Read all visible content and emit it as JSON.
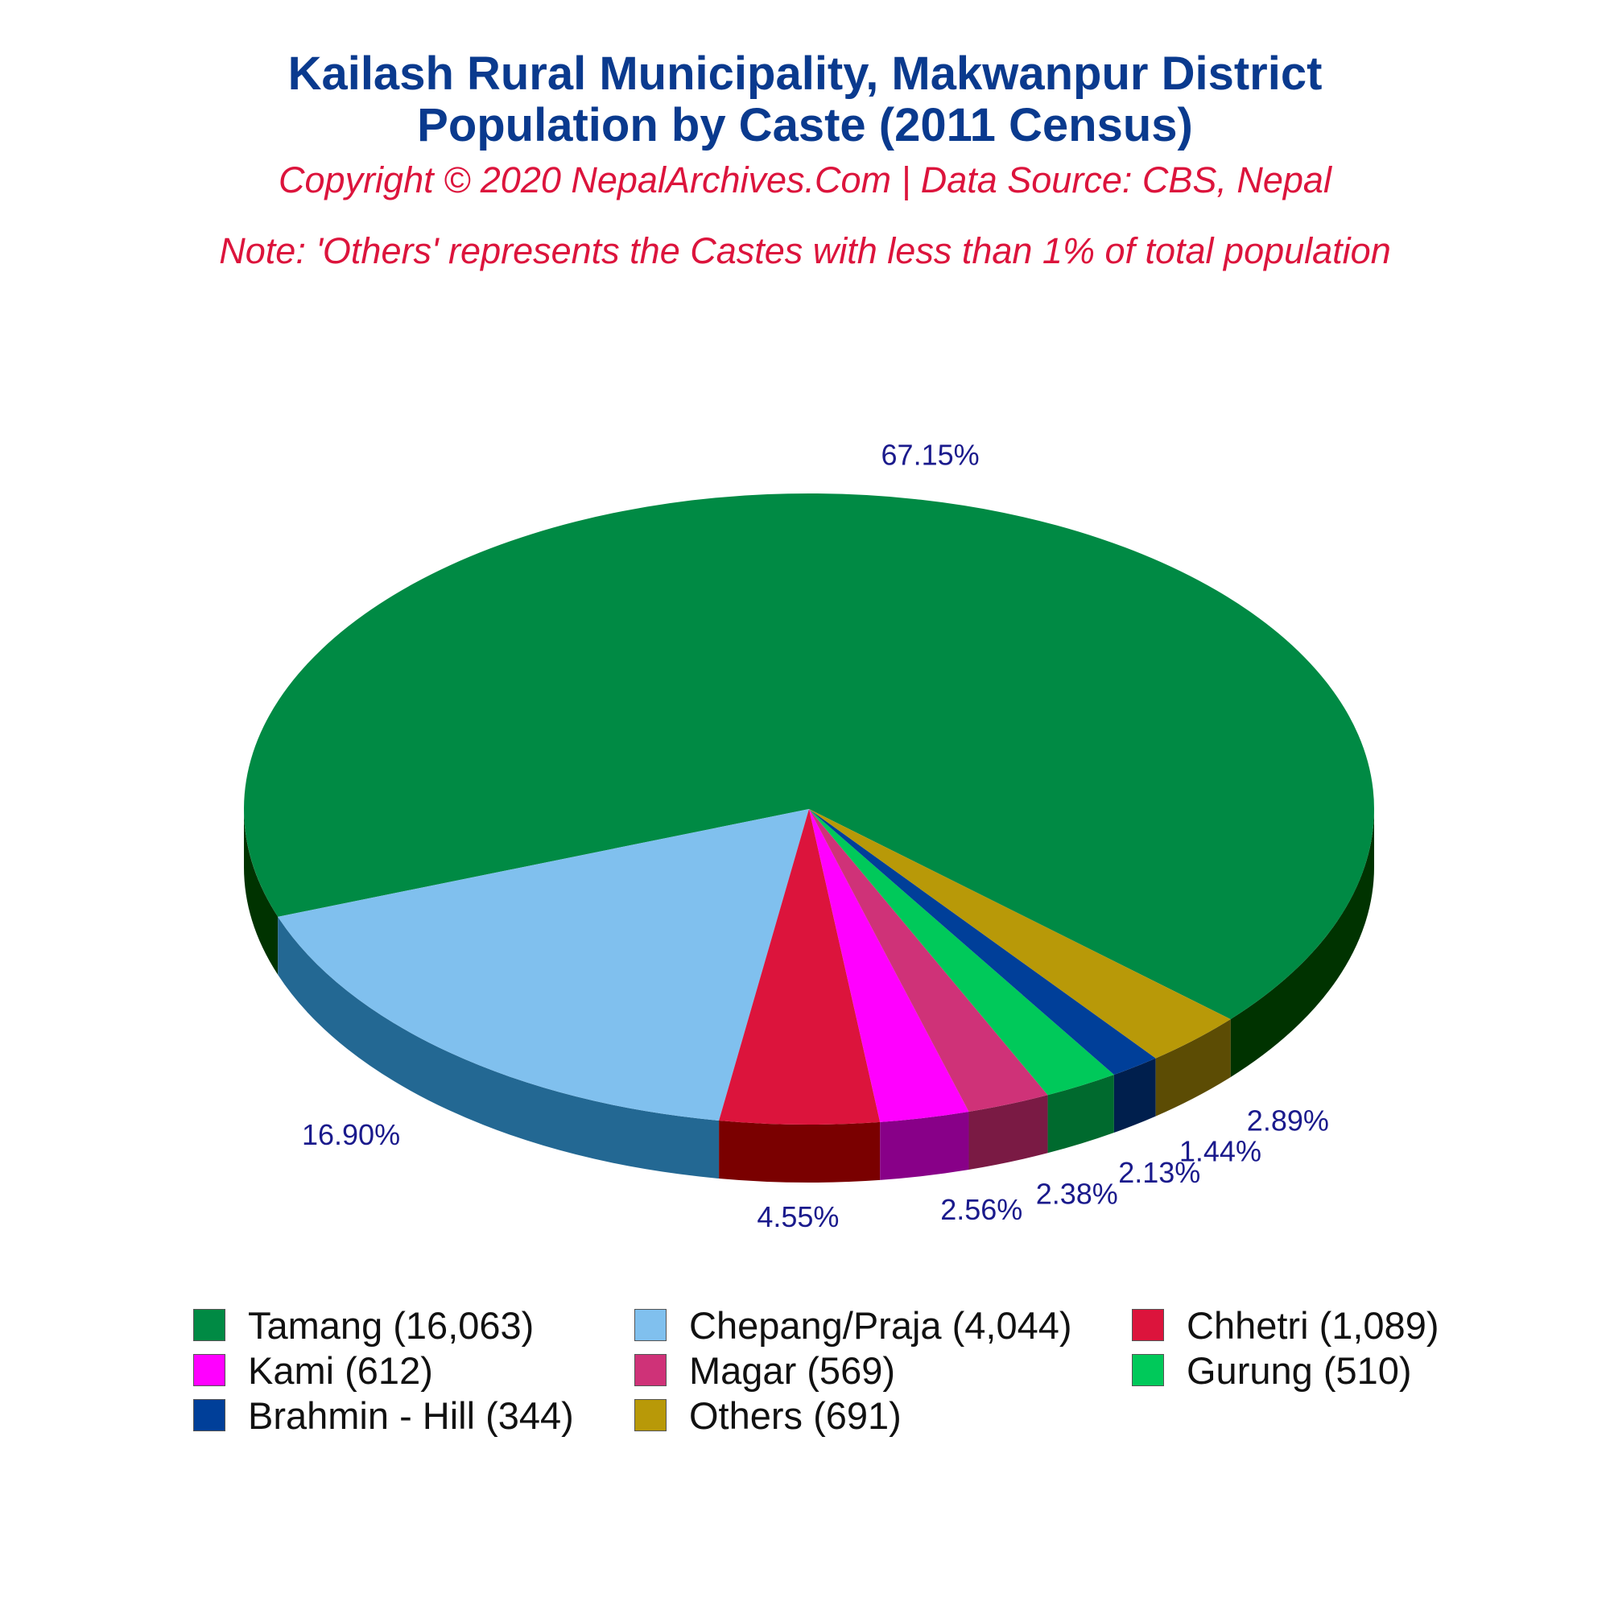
{
  "header": {
    "title_line1": "Kailash Rural Municipality, Makwanpur District",
    "title_line2": "Population by Caste (2011 Census)",
    "subtitle": "Copyright © 2020 NepalArchives.Com | Data Source: CBS, Nepal",
    "note": "Note: 'Others' represents the Castes with less than 1% of total population"
  },
  "chart_data": {
    "type": "pie",
    "style": "3d",
    "slices": [
      {
        "label": "Tamang (16,063)",
        "value": 16063,
        "percent_label": "67.15%",
        "color": "#008a44",
        "side_color": "#003300"
      },
      {
        "label": "Chepang/Praja (4,044)",
        "value": 4044,
        "percent_label": "16.90%",
        "color": "#80c0ee",
        "side_color": "#236893"
      },
      {
        "label": "Chhetri (1,089)",
        "value": 1089,
        "percent_label": "4.55%",
        "color": "#dc143c",
        "side_color": "#7a0000"
      },
      {
        "label": "Kami (612)",
        "value": 612,
        "percent_label": "2.56%",
        "color": "#ff00ff",
        "side_color": "#880088"
      },
      {
        "label": "Magar (569)",
        "value": 569,
        "percent_label": "2.38%",
        "color": "#cf3278",
        "side_color": "#7a1a44"
      },
      {
        "label": "Gurung (510)",
        "value": 510,
        "percent_label": "2.13%",
        "color": "#00c95a",
        "side_color": "#006a2e"
      },
      {
        "label": "Brahmin - Hill (344)",
        "value": 344,
        "percent_label": "1.44%",
        "color": "#003f99",
        "side_color": "#001f4d"
      },
      {
        "label": "Others (691)",
        "value": 691,
        "percent_label": "2.89%",
        "color": "#b89908",
        "side_color": "#5c4c04"
      }
    ],
    "legend_position": "bottom"
  }
}
